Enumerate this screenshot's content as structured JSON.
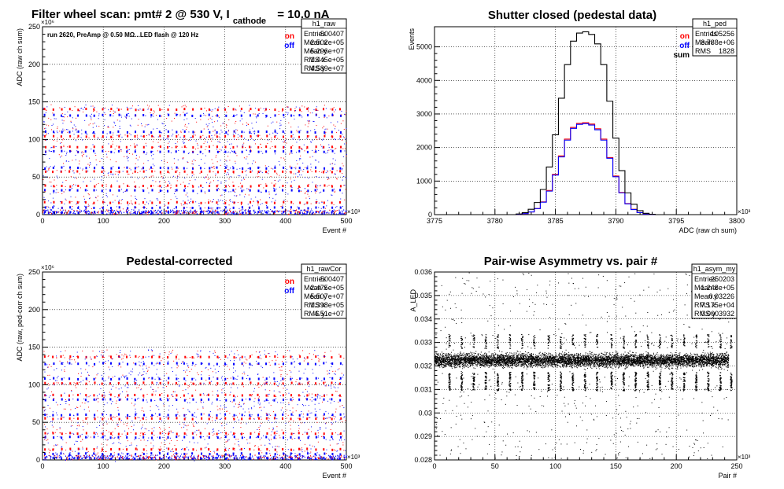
{
  "top_left": {
    "title_main": "Filter wheel scan: pmt#   2 @   530 V, I",
    "title_sub": "cathode",
    "title_tail": "= 10.0 nA",
    "run_note": "run 2620, PreAmp @ 0.50 MΩ...LED flash @  120 Hz",
    "legend": [
      {
        "label": "on",
        "color": "#ff0000"
      },
      {
        "label": "off",
        "color": "#0000ff"
      }
    ],
    "stats": {
      "title": "h1_raw",
      "rows": [
        [
          "Entries",
          "500407"
        ],
        [
          "Mean x",
          "2.502e+05"
        ],
        [
          "Mean y",
          "5.296e+07"
        ],
        [
          "RMS x",
          "1.445e+05"
        ],
        [
          "RMS y",
          "4.589e+07"
        ]
      ]
    }
  },
  "top_right": {
    "title": "Shutter closed (pedestal data)",
    "legend": [
      {
        "label": "on",
        "color": "#ff0000"
      },
      {
        "label": "off",
        "color": "#0000ff"
      },
      {
        "label": "sum",
        "color": "#000000"
      }
    ],
    "stats": {
      "title": "h1_ped",
      "rows": [
        [
          "Entries",
          "105256"
        ],
        [
          "Mean",
          "3.788e+06"
        ],
        [
          "RMS",
          "1828"
        ]
      ]
    }
  },
  "bottom_left": {
    "title": "Pedestal-corrected",
    "legend": [
      {
        "label": "on",
        "color": "#ff0000"
      },
      {
        "label": "off",
        "color": "#0000ff"
      }
    ],
    "stats": {
      "title": "h1_rawCor",
      "rows": [
        [
          "Entries",
          "500407"
        ],
        [
          "Mean x",
          "2.475e+05"
        ],
        [
          "Mean y",
          "5.507e+07"
        ],
        [
          "RMS x",
          "1.398e+05"
        ],
        [
          "RMS y",
          "4.51e+07"
        ]
      ]
    }
  },
  "bottom_right": {
    "title": "Pair-wise Asymmetry vs. pair #",
    "stats": {
      "title": "h1_asym_my",
      "rows": [
        [
          "Entries",
          "250203"
        ],
        [
          "Mean x",
          "1.248e+05"
        ],
        [
          "Mean y",
          "0.03226"
        ],
        [
          "RMS x",
          "7.175e+04"
        ],
        [
          "RMS y",
          "0.0003932"
        ]
      ]
    }
  },
  "chart_data": [
    {
      "type": "scatter",
      "panel": "top_left",
      "xlabel": "Event #",
      "ylabel": "ADC (raw ch sum)",
      "x_multiplier": "×10³",
      "y_multiplier": "×10⁶",
      "xlim": [
        0,
        500
      ],
      "ylim": [
        0,
        250
      ],
      "xticks": [
        0,
        100,
        200,
        300,
        400,
        500
      ],
      "yticks": [
        0,
        50,
        100,
        150,
        200,
        250
      ],
      "grid": true,
      "legend_position": "top-right",
      "period": 13.5,
      "levels": [
        {
          "y": 140,
          "series": "on",
          "color": "#ff0000"
        },
        {
          "y": 132,
          "series": "off",
          "color": "#0000ff"
        },
        {
          "y": 110,
          "series": "off",
          "color": "#0000ff"
        },
        {
          "y": 104,
          "series": "on",
          "color": "#ff0000"
        },
        {
          "y": 90,
          "series": "on",
          "color": "#ff0000"
        },
        {
          "y": 84,
          "series": "off",
          "color": "#0000ff"
        },
        {
          "y": 62,
          "series": "off",
          "color": "#0000ff"
        },
        {
          "y": 57,
          "series": "on",
          "color": "#ff0000"
        },
        {
          "y": 38,
          "series": "on",
          "color": "#ff0000"
        },
        {
          "y": 32,
          "series": "off",
          "color": "#0000ff"
        },
        {
          "y": 16,
          "series": "on",
          "color": "#ff0000"
        },
        {
          "y": 9,
          "series": "off",
          "color": "#0000ff"
        },
        {
          "y": 3,
          "series": "off",
          "color": "#0000ff"
        }
      ]
    },
    {
      "type": "line",
      "panel": "top_right",
      "xlabel": "ADC (raw ch sum)",
      "ylabel": "Events",
      "x_multiplier": "×10³",
      "xlim": [
        3775,
        3800
      ],
      "ylim": [
        0,
        5600
      ],
      "xticks": [
        3775,
        3780,
        3785,
        3790,
        3795,
        3800
      ],
      "yticks": [
        0,
        1000,
        2000,
        3000,
        4000,
        5000
      ],
      "grid": true,
      "legend_position": "top-right",
      "x": [
        3782.0,
        3782.5,
        3783.0,
        3783.5,
        3784.0,
        3784.5,
        3785.0,
        3785.5,
        3786.0,
        3786.5,
        3787.0,
        3787.5,
        3788.0,
        3788.5,
        3789.0,
        3789.5,
        3790.0,
        3790.5,
        3791.0,
        3791.5,
        3792.0,
        3792.5,
        3793.0
      ],
      "series": [
        {
          "name": "on",
          "color": "#ff0000",
          "values": [
            10,
            30,
            80,
            180,
            380,
            720,
            1200,
            1750,
            2250,
            2600,
            2720,
            2740,
            2700,
            2560,
            2250,
            1700,
            1150,
            660,
            330,
            160,
            60,
            20,
            5
          ]
        },
        {
          "name": "off",
          "color": "#0000ff",
          "values": [
            10,
            30,
            80,
            180,
            370,
            700,
            1180,
            1720,
            2220,
            2570,
            2690,
            2710,
            2670,
            2530,
            2220,
            1680,
            1130,
            650,
            320,
            150,
            60,
            20,
            5
          ]
        },
        {
          "name": "sum",
          "color": "#000000",
          "values": [
            20,
            60,
            160,
            360,
            750,
            1420,
            2380,
            3470,
            4470,
            5170,
            5410,
            5450,
            5370,
            5090,
            4470,
            3380,
            2280,
            1310,
            650,
            310,
            120,
            40,
            10
          ]
        }
      ]
    },
    {
      "type": "scatter",
      "panel": "bottom_left",
      "xlabel": "Event #",
      "ylabel": "ADC (raw, ped-corr ch sum)",
      "x_multiplier": "×10³",
      "y_multiplier": "×10⁶",
      "xlim": [
        0,
        500
      ],
      "ylim": [
        0,
        250
      ],
      "xticks": [
        0,
        100,
        200,
        300,
        400,
        500
      ],
      "yticks": [
        0,
        50,
        100,
        150,
        200,
        250
      ],
      "grid": true,
      "legend_position": "top-right",
      "period": 13.5,
      "levels": [
        {
          "y": 137,
          "series": "on",
          "color": "#ff0000"
        },
        {
          "y": 128,
          "series": "off",
          "color": "#0000ff"
        },
        {
          "y": 108,
          "series": "off",
          "color": "#0000ff"
        },
        {
          "y": 102,
          "series": "on",
          "color": "#ff0000"
        },
        {
          "y": 86,
          "series": "on",
          "color": "#ff0000"
        },
        {
          "y": 80,
          "series": "off",
          "color": "#0000ff"
        },
        {
          "y": 60,
          "series": "off",
          "color": "#0000ff"
        },
        {
          "y": 55,
          "series": "on",
          "color": "#ff0000"
        },
        {
          "y": 35,
          "series": "on",
          "color": "#ff0000"
        },
        {
          "y": 30,
          "series": "off",
          "color": "#0000ff"
        },
        {
          "y": 14,
          "series": "on",
          "color": "#ff0000"
        },
        {
          "y": 8,
          "series": "off",
          "color": "#0000ff"
        },
        {
          "y": 2,
          "series": "off",
          "color": "#0000ff"
        }
      ]
    },
    {
      "type": "scatter",
      "panel": "bottom_right",
      "xlabel": "Pair #",
      "ylabel": "A_LED",
      "x_multiplier": "×10³",
      "xlim": [
        0,
        250
      ],
      "ylim": [
        0.028,
        0.036
      ],
      "xticks": [
        0,
        50,
        100,
        150,
        200,
        250
      ],
      "yticks": [
        0.028,
        0.029,
        0.03,
        0.031,
        0.032,
        0.033,
        0.034,
        0.035,
        0.036
      ],
      "grid": true,
      "mean_y": 0.03226,
      "spread_y": 0.0004,
      "dip_x": [
        12,
        22,
        32,
        42,
        52,
        62,
        72,
        82,
        94,
        104,
        114,
        124,
        134,
        146,
        156,
        166,
        176,
        186,
        196,
        206,
        216,
        226,
        236,
        245
      ]
    }
  ]
}
